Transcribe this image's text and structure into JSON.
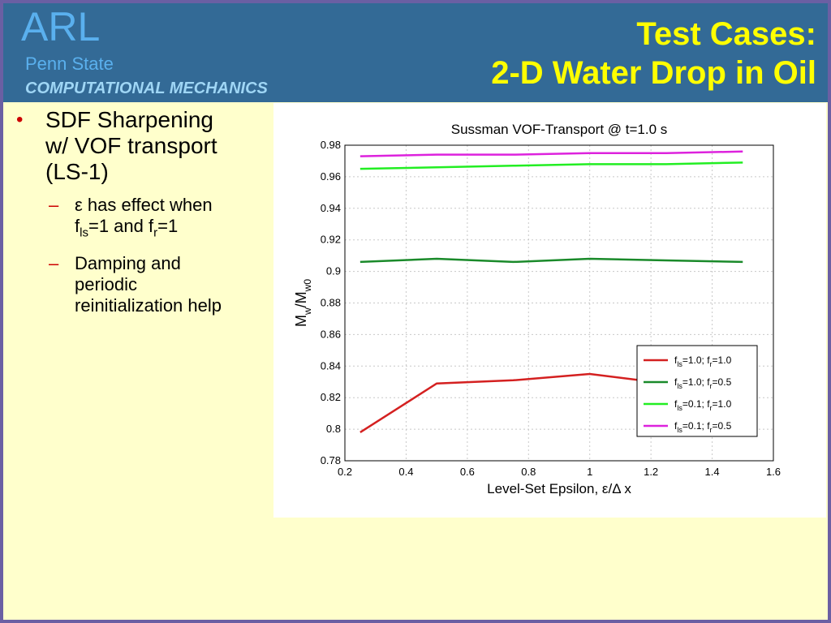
{
  "header": {
    "logo": "ARL",
    "org": "Penn State",
    "dept": "COMPUTATIONAL MECHANICS",
    "title_line1": "Test Cases:",
    "title_line2": "2-D Water Drop in Oil"
  },
  "bullets": {
    "main_line1": "SDF Sharpening",
    "main_line2": "w/ VOF transport",
    "main_line3": "(LS-1)",
    "sub1_a": "ε has effect when",
    "sub1_f1": "f",
    "sub1_ls": "ls",
    "sub1_mid": "=1 and f",
    "sub1_r": "r",
    "sub1_end": "=1",
    "sub2_line1": "Damping and",
    "sub2_line2": "periodic",
    "sub2_line3": "reinitialization help"
  },
  "chart_data": {
    "type": "line",
    "title": "Sussman VOF-Transport @ t=1.0 s",
    "xlabel": "Level-Set Epsilon, ε/Δ x",
    "ylabel": {
      "base": "M",
      "sub1": "w",
      "mid": "/M",
      "sub2": "w0"
    },
    "xlim": [
      0.2,
      1.6
    ],
    "ylim": [
      0.78,
      0.98
    ],
    "xticks": [
      "0.2",
      "0.4",
      "0.6",
      "0.8",
      "1",
      "1.2",
      "1.4",
      "1.6"
    ],
    "yticks": [
      "0.78",
      "0.8",
      "0.82",
      "0.84",
      "0.86",
      "0.88",
      "0.9",
      "0.92",
      "0.94",
      "0.96",
      "0.98"
    ],
    "grid": true,
    "legend_position": "bottom-right",
    "x": [
      0.25,
      0.5,
      0.75,
      1.0,
      1.25,
      1.5
    ],
    "series": [
      {
        "legend": {
          "f": "f",
          "a": "ls",
          "b": "=1.0; f",
          "c": "r",
          "d": "=1.0"
        },
        "color": "#d42020",
        "values": [
          0.798,
          0.829,
          0.831,
          0.835,
          0.829,
          0.831
        ]
      },
      {
        "legend": {
          "f": "f",
          "a": "ls",
          "b": "=1.0; f",
          "c": "r",
          "d": "=0.5"
        },
        "color": "#1a8a2a",
        "values": [
          0.906,
          0.908,
          0.906,
          0.908,
          0.907,
          0.906
        ]
      },
      {
        "legend": {
          "f": "f",
          "a": "ls",
          "b": "=0.1; f",
          "c": "r",
          "d": "=1.0"
        },
        "color": "#22ee22",
        "values": [
          0.965,
          0.966,
          0.967,
          0.968,
          0.968,
          0.969
        ]
      },
      {
        "legend": {
          "f": "f",
          "a": "ls",
          "b": "=0.1; f",
          "c": "r",
          "d": "=0.5"
        },
        "color": "#dd22dd",
        "values": [
          0.973,
          0.974,
          0.974,
          0.975,
          0.975,
          0.976
        ]
      }
    ]
  }
}
